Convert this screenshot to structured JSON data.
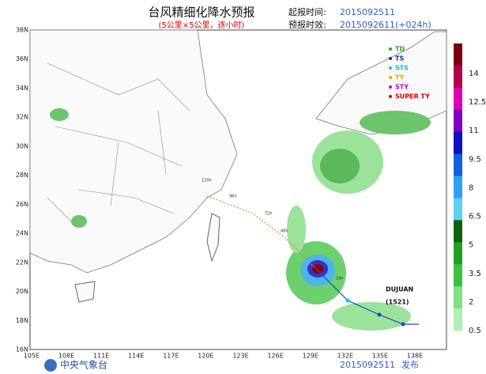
{
  "header": {
    "title": "台风精细化降水预报",
    "subtitle": "(5公里×5公里，逐小时)",
    "start_label": "起报时间:",
    "start_time": "2015092511",
    "lead_label": "预报时效:",
    "lead_time": "2015092611(+024h)"
  },
  "axes": {
    "lat_labels": [
      "38N",
      "36N",
      "34N",
      "32N",
      "30N",
      "28N",
      "26N",
      "24N",
      "22N",
      "20N",
      "18N",
      "16N"
    ],
    "lon_labels": [
      "105E",
      "108E",
      "111E",
      "114E",
      "117E",
      "120E",
      "123E",
      "126E",
      "129E",
      "132E",
      "135E",
      "138E"
    ]
  },
  "legend": [
    "TD",
    "TS",
    "STS",
    "TY",
    "STY",
    "SUPER TY"
  ],
  "colorbar": {
    "labels": [
      14,
      12.5,
      11,
      9.5,
      8,
      6.5,
      5,
      3.5,
      2,
      0.5
    ]
  },
  "typhoon": {
    "name": "DUJUAN",
    "number": "(1521)",
    "track_labels": [
      "120h",
      "96h",
      "72h",
      "48h",
      "24h"
    ]
  },
  "footer": {
    "agency": "中央气象台",
    "issue_time": "2015092511",
    "issue_label": "发布"
  }
}
